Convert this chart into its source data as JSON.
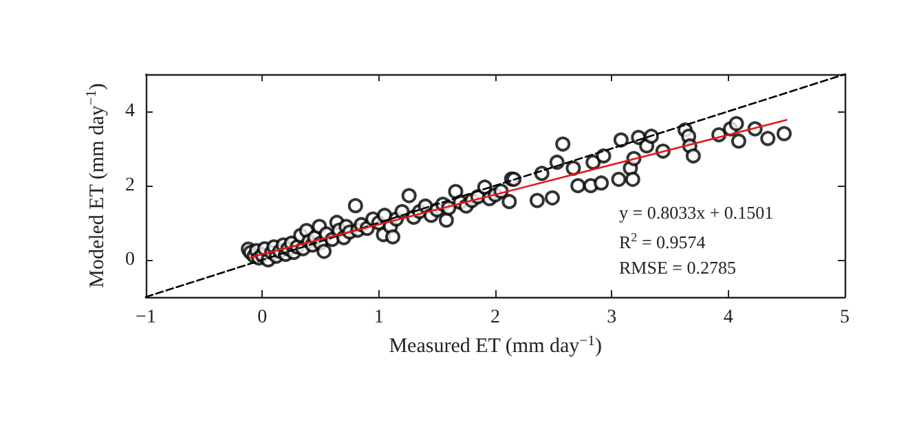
{
  "chart_data": {
    "type": "scatter",
    "xlabel": "Measured ET (mm day$^{−1}$)",
    "ylabel": "Modeled ET (mm day$^{−1}$)",
    "xlim": [
      -1,
      5
    ],
    "xticks": [
      -1,
      0,
      1,
      2,
      3,
      4,
      5
    ],
    "ylim": [
      -1,
      5
    ],
    "yticks": [
      0,
      2,
      4
    ],
    "grid": false,
    "annotations": [
      "y = 0.8033x + 0.1501",
      "R$^{2}$ = 0.9574",
      "RMSE = 0.2785"
    ],
    "series": [
      {
        "color": "#000000",
        "marker": "circle",
        "x": [
          -0.12,
          -0.1,
          -0.07,
          -0.05,
          -0.03,
          0,
          0.02,
          0.05,
          0.08,
          0.1,
          0.12,
          0.15,
          0.18,
          0.2,
          0.22,
          0.25,
          0.27,
          0.3,
          0.33,
          0.35,
          0.38,
          0.4,
          0.43,
          0.45,
          0.49,
          0.5,
          0.53,
          0.55,
          0.6,
          0.64,
          0.66,
          0.7,
          0.72,
          0.75,
          0.8,
          0.82,
          0.85,
          0.9,
          0.95,
          1.0,
          1.04,
          1.05,
          1.1,
          1.12,
          1.15,
          1.2,
          1.26,
          1.3,
          1.35,
          1.4,
          1.45,
          1.5,
          1.55,
          1.58,
          1.6,
          1.66,
          1.7,
          1.75,
          1.8,
          1.85,
          1.91,
          1.95,
          2.0,
          2.05,
          2.12,
          2.14,
          2.16,
          2.36,
          2.4,
          2.49,
          2.53,
          2.58,
          2.67,
          2.71,
          2.82,
          2.84,
          2.91,
          2.93,
          3.06,
          3.08,
          3.16,
          3.18,
          3.19,
          3.23,
          3.3,
          3.34,
          3.44,
          3.63,
          3.66,
          3.67,
          3.7,
          3.92,
          4.02,
          4.07,
          4.09,
          4.23,
          4.34,
          4.48
        ],
        "values": [
          0.29,
          0.2,
          0.1,
          0.25,
          0.05,
          0.13,
          0.3,
          0.0,
          0.2,
          0.35,
          0.1,
          0.23,
          0.4,
          0.15,
          0.3,
          0.45,
          0.2,
          0.35,
          0.66,
          0.3,
          0.79,
          0.5,
          0.4,
          0.6,
          0.9,
          0.45,
          0.23,
          0.7,
          0.55,
          1.01,
          0.8,
          0.6,
          0.9,
          0.75,
          1.46,
          0.8,
          0.95,
          0.85,
          1.1,
          1.0,
          0.68,
          1.2,
          0.9,
          0.62,
          1.1,
          1.3,
          1.73,
          1.15,
          1.3,
          1.45,
          1.2,
          1.35,
          1.5,
          1.07,
          1.4,
          1.84,
          1.55,
          1.45,
          1.6,
          1.7,
          1.96,
          1.65,
          1.75,
          1.85,
          1.57,
          2.18,
          2.17,
          1.6,
          2.33,
          1.67,
          2.63,
          3.12,
          2.47,
          2.0,
          2.0,
          2.63,
          2.07,
          2.8,
          2.17,
          3.23,
          2.47,
          2.17,
          2.73,
          3.3,
          3.07,
          3.33,
          2.93,
          3.5,
          3.33,
          3.07,
          2.8,
          3.37,
          3.53,
          3.67,
          3.2,
          3.53,
          3.27,
          3.4
        ]
      },
      {
        "type": "line",
        "color": "#000000",
        "line_style": "dashed",
        "marker": "none",
        "x": [
          -1,
          5
        ],
        "values": [
          -1,
          5
        ]
      },
      {
        "type": "line",
        "color": "#e8141c",
        "line_style": "solid",
        "marker": "none",
        "x": [
          -0.1,
          4.5
        ],
        "values": [
          0.07,
          3.77
        ]
      }
    ]
  }
}
